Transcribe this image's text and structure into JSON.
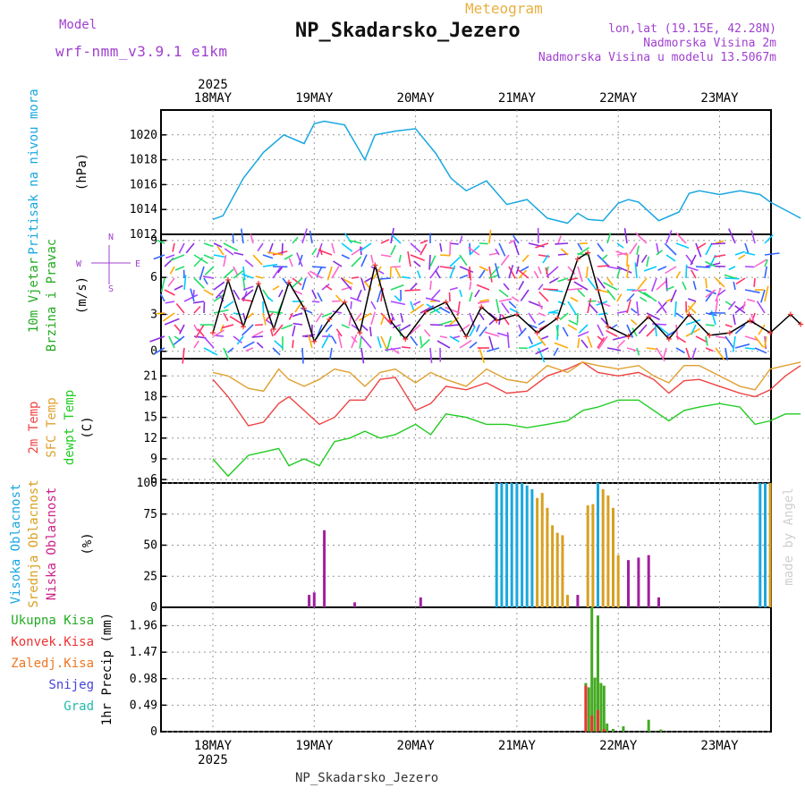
{
  "header": {
    "model_label": "Model",
    "model_name": "wrf-nmm_v3.9.1 e1km",
    "meteogram": "Meteogram",
    "station": "NP_Skadarsko_Jezero",
    "lonlat": "lon,lat (19.15E, 42.28N)",
    "elevation": "Nadmorska Visina 2m",
    "model_elevation": "Nadmorska Visina u modelu 13.5067m",
    "footer_station": "NP_Skadarsko_Jezero",
    "credit": "made by Angel",
    "year": "2025"
  },
  "colors": {
    "pressure": "#1aa7e0",
    "wind": "#000000",
    "temp2m": "#ee4444",
    "sfc": "#e0a030",
    "dew": "#22cc22",
    "high_cloud": "#1aa7e0",
    "mid_cloud": "#d8a020",
    "low_cloud": "#a020a0",
    "total_precip": "#44aa22",
    "conv_precip": "#ee3333"
  },
  "chart_data": [
    {
      "type": "line",
      "name": "pressure",
      "ylabel": [
        "Pritisak na nivou mora",
        "(hPa)"
      ],
      "ylim": [
        1012,
        1022
      ],
      "yticks": [
        1012,
        1014,
        1016,
        1018,
        1020
      ],
      "x_days": [
        "18MAY",
        "19MAY",
        "20MAY",
        "21MAY",
        "22MAY",
        "23MAY"
      ],
      "x": [
        0,
        0.1,
        0.3,
        0.5,
        0.7,
        0.9,
        1.0,
        1.1,
        1.3,
        1.5,
        1.6,
        1.8,
        2.0,
        2.2,
        2.35,
        2.5,
        2.7,
        2.9,
        3.1,
        3.3,
        3.5,
        3.6,
        3.7,
        3.85,
        4.0,
        4.1,
        4.2,
        4.4,
        4.6,
        4.7,
        4.8,
        5.0,
        5.2,
        5.4,
        5.5,
        5.8
      ],
      "values": [
        1013.2,
        1013.5,
        1016.5,
        1018.6,
        1020.0,
        1019.3,
        1020.9,
        1021.1,
        1020.8,
        1018.0,
        1020.0,
        1020.3,
        1020.5,
        1018.5,
        1016.5,
        1015.5,
        1016.3,
        1014.4,
        1014.8,
        1013.3,
        1012.9,
        1013.7,
        1013.2,
        1013.1,
        1014.5,
        1014.8,
        1014.6,
        1013.1,
        1013.8,
        1015.3,
        1015.5,
        1015.2,
        1015.5,
        1015.2,
        1014.6,
        1013.3
      ]
    },
    {
      "type": "line",
      "name": "wind",
      "ylabel": [
        "10m Vjetar",
        "Brzina i Pravac",
        "(m/s)"
      ],
      "compass": [
        "N",
        "W",
        "E",
        "S"
      ],
      "ylim": [
        -0.6,
        9.5
      ],
      "yticks": [
        0,
        3,
        6,
        9
      ],
      "x": [
        0,
        0.15,
        0.3,
        0.45,
        0.6,
        0.75,
        0.9,
        1.0,
        1.15,
        1.3,
        1.45,
        1.6,
        1.75,
        1.9,
        2.1,
        2.3,
        2.5,
        2.65,
        2.8,
        3.0,
        3.2,
        3.4,
        3.6,
        3.7,
        3.8,
        3.9,
        4.1,
        4.3,
        4.5,
        4.7,
        4.9,
        5.1,
        5.3,
        5.5,
        5.7,
        5.8
      ],
      "values": [
        1.5,
        5.8,
        2.0,
        5.5,
        1.8,
        5.6,
        3.5,
        0.8,
        2.6,
        4.0,
        1.5,
        7.0,
        2.5,
        1.0,
        3.2,
        4.0,
        1.2,
        3.6,
        2.5,
        3.0,
        1.5,
        2.7,
        7.5,
        8.0,
        5.0,
        2.0,
        1.2,
        2.8,
        1.0,
        3.0,
        1.3,
        1.5,
        2.5,
        1.5,
        3.0,
        2.2
      ]
    },
    {
      "type": "line",
      "name": "temperature",
      "ylabel": [
        "2m Temp",
        "SFC Temp",
        "dewpt Temp",
        "(C)"
      ],
      "ylim": [
        5.5,
        23.5
      ],
      "yticks": [
        6,
        9,
        12,
        15,
        18,
        21
      ],
      "x": [
        0,
        0.15,
        0.35,
        0.5,
        0.65,
        0.75,
        0.9,
        1.05,
        1.2,
        1.35,
        1.5,
        1.65,
        1.8,
        2.0,
        2.15,
        2.3,
        2.5,
        2.7,
        2.9,
        3.1,
        3.3,
        3.5,
        3.65,
        3.8,
        4.0,
        4.2,
        4.35,
        4.5,
        4.65,
        4.8,
        5.0,
        5.2,
        5.35,
        5.5,
        5.65,
        5.8
      ],
      "series": [
        {
          "name": "2m Temp",
          "values": [
            20.5,
            18.0,
            13.8,
            14.3,
            17.0,
            18.0,
            16.0,
            14.0,
            15.0,
            17.5,
            17.5,
            20.5,
            20.8,
            16.0,
            17.0,
            19.5,
            19.0,
            20.0,
            18.5,
            18.8,
            21.0,
            22.0,
            23.0,
            21.5,
            21.0,
            21.5,
            20.5,
            18.5,
            20.3,
            20.5,
            19.5,
            18.5,
            18.0,
            19.0,
            21.0,
            22.5
          ]
        },
        {
          "name": "SFC Temp",
          "values": [
            21.5,
            21.0,
            19.2,
            18.8,
            22.0,
            20.5,
            19.5,
            20.5,
            22.0,
            21.5,
            19.5,
            21.5,
            22.0,
            20.0,
            21.5,
            20.5,
            19.5,
            22.0,
            20.5,
            20.0,
            22.5,
            21.5,
            23.0,
            22.5,
            22.0,
            22.5,
            21.0,
            20.0,
            22.5,
            22.5,
            21.0,
            19.5,
            19.0,
            22.0,
            22.5,
            23.0
          ]
        },
        {
          "name": "dewpt Temp",
          "values": [
            9.0,
            6.5,
            9.5,
            10.0,
            10.5,
            8.0,
            9.0,
            8.0,
            11.5,
            12.0,
            13.0,
            12.0,
            12.5,
            14.0,
            12.5,
            15.5,
            15.0,
            14.0,
            14.0,
            13.5,
            14.0,
            14.5,
            16.0,
            16.5,
            17.5,
            17.5,
            16.0,
            14.5,
            16.0,
            16.5,
            17.0,
            16.5,
            14.0,
            14.5,
            15.5,
            15.5
          ]
        }
      ]
    },
    {
      "type": "bar",
      "name": "clouds",
      "ylabel": [
        "Visoka Oblacnost",
        "Srednja Oblacnost",
        "Niska Oblacnost",
        "(%)"
      ],
      "ylim": [
        0,
        100
      ],
      "yticks": [
        0,
        25,
        50,
        75,
        100
      ],
      "series": [
        {
          "name": "Visoka Oblacnost",
          "x": [
            2.8,
            2.85,
            2.9,
            2.95,
            3.0,
            3.05,
            3.1,
            3.15,
            3.8,
            5.4,
            5.45
          ],
          "values": [
            100,
            100,
            100,
            100,
            100,
            100,
            98,
            95,
            100,
            100,
            100
          ]
        },
        {
          "name": "Srednja Oblacnost",
          "x": [
            3.2,
            3.25,
            3.3,
            3.35,
            3.4,
            3.45,
            3.5,
            3.7,
            3.75,
            3.85,
            3.9,
            3.95,
            4.0,
            5.5
          ],
          "values": [
            88,
            92,
            80,
            66,
            60,
            58,
            10,
            82,
            83,
            95,
            90,
            80,
            42,
            100
          ]
        },
        {
          "name": "Niska Oblacnost",
          "x": [
            0.95,
            1.0,
            1.1,
            1.4,
            2.05,
            3.6,
            4.1,
            4.2,
            4.3,
            4.4
          ],
          "values": [
            10,
            12,
            62,
            4,
            8,
            10,
            38,
            40,
            42,
            8
          ]
        }
      ]
    },
    {
      "type": "bar",
      "name": "precipitation",
      "ylabel": [
        "1hr Precip (mm)"
      ],
      "legend": [
        "Ukupna Kisa",
        "Konvek.Kisa",
        "Zaledj.Kisa",
        "Snijeg",
        "Grad"
      ],
      "ylim": [
        0,
        2.3
      ],
      "yticks": [
        0,
        0.49,
        0.98,
        1.47,
        1.96
      ],
      "series": [
        {
          "name": "Ukupna Kisa",
          "x": [
            3.68,
            3.71,
            3.74,
            3.77,
            3.8,
            3.83,
            3.86,
            3.89,
            3.95,
            4.05,
            4.3,
            4.42
          ],
          "values": [
            0.9,
            0.82,
            2.3,
            1.0,
            2.15,
            0.9,
            0.85,
            0.15,
            0.05,
            0.1,
            0.22,
            0.04
          ]
        },
        {
          "name": "Konvek.Kisa",
          "x": [
            3.68,
            3.74,
            3.8,
            3.86
          ],
          "values": [
            0.85,
            0.3,
            0.4,
            0.05
          ]
        }
      ]
    }
  ]
}
